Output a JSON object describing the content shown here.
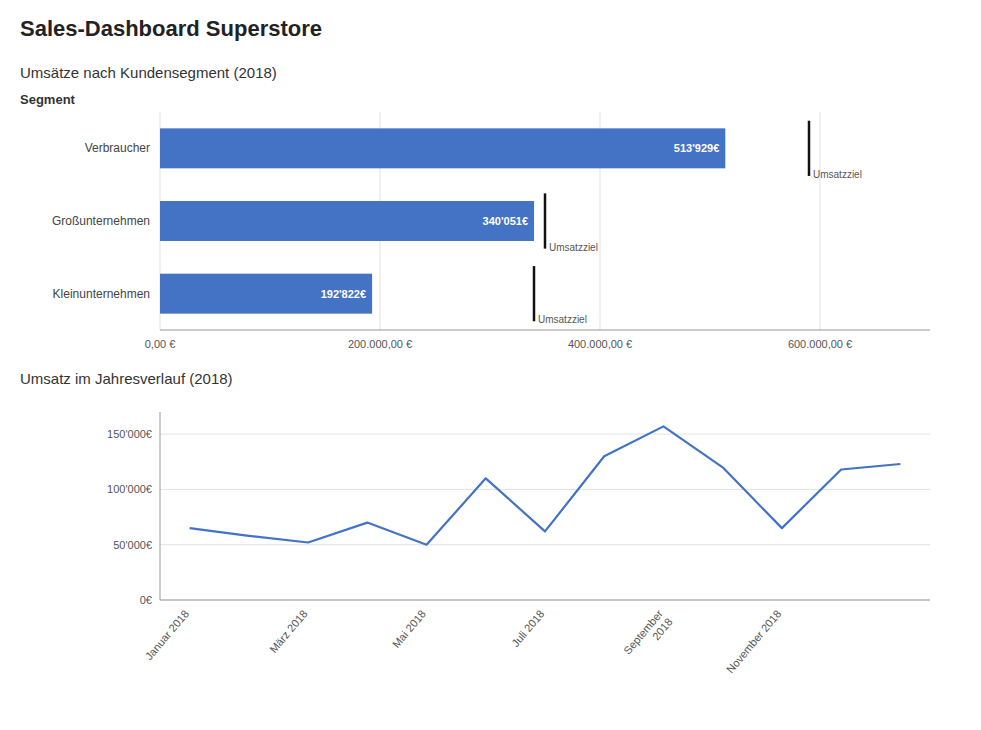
{
  "title": "Sales-Dashboard Superstore",
  "chart_data": [
    {
      "type": "bar",
      "orientation": "horizontal",
      "title": "Umsätze nach Kundensegment (2018)",
      "ylabel": "Segment",
      "categories": [
        "Kleinunternehmen",
        "Großunternehmen",
        "Verbraucher"
      ],
      "values": [
        192822,
        340051,
        513929
      ],
      "value_labels": [
        "192'822€",
        "340'051€",
        "513'929€"
      ],
      "data_labels": true,
      "color": "#4472c4",
      "targets": [
        340000,
        350000,
        590000
      ],
      "target_label": "Umsatzziel",
      "xlim": [
        0,
        700000
      ],
      "xticks": [
        {
          "value": 0,
          "label": "0,00 €"
        },
        {
          "value": 200000,
          "label": "200.000,00 €"
        },
        {
          "value": 400000,
          "label": "400.000,00 €"
        },
        {
          "value": 600000,
          "label": "600.000,00 €"
        }
      ],
      "grid": true
    },
    {
      "type": "line",
      "title": "Umsatz im Jahresverlauf (2018)",
      "categories": [
        "Januar 2018",
        null,
        "März 2018",
        null,
        "Mai 2018",
        null,
        "Juli 2018",
        null,
        "September\n2018",
        null,
        "November 2018",
        null,
        null
      ],
      "values": [
        65000,
        58000,
        52000,
        70000,
        50000,
        110000,
        62000,
        130000,
        157000,
        120000,
        65000,
        118000,
        123000
      ],
      "color": "#4472c4",
      "ylim": [
        0,
        170000
      ],
      "yticks": [
        {
          "value": 0,
          "label": "0€"
        },
        {
          "value": 50000,
          "label": "50'000€"
        },
        {
          "value": 100000,
          "label": "100'000€"
        },
        {
          "value": 150000,
          "label": "150'000€"
        }
      ],
      "grid": true
    }
  ]
}
